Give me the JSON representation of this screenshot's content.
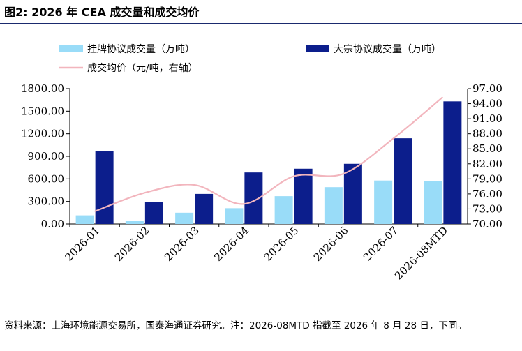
{
  "title": "图2:  2026 年 CEA 成交量和成交均价",
  "source": "资料来源：上海环境能源交易所，国泰海通证券研究。注：2026-08MTD 指截至 2026 年 8 月 28 日，下同。",
  "colors": {
    "listed": "#99dcf8",
    "block": "#0c1e8c",
    "price": "#f2b5bd",
    "rule": "#1a2a6e"
  },
  "chart_data": {
    "type": "bar",
    "categories": [
      "2026-01",
      "2026-02",
      "2026-03",
      "2026-04",
      "2026-05",
      "2026-06",
      "2026-07",
      "2026-08MTD"
    ],
    "series": [
      {
        "name": "挂牌协议成交量（万吨）",
        "axis": "left",
        "type": "bar",
        "values": [
          115,
          40,
          150,
          210,
          370,
          490,
          578,
          573
        ]
      },
      {
        "name": "大宗协议成交量（万吨）",
        "axis": "left",
        "type": "bar",
        "values": [
          970,
          295,
          400,
          685,
          735,
          800,
          1140,
          1630
        ]
      },
      {
        "name": "成交均价（元/吨，右轴）",
        "axis": "right",
        "type": "line",
        "values": [
          72.5,
          76.2,
          77.8,
          74.0,
          79.5,
          80.0,
          87.0,
          95.3
        ]
      }
    ],
    "y_left": {
      "ylim": [
        0,
        1800
      ],
      "ticks": [
        "0.00",
        "300.00",
        "600.00",
        "900.00",
        "1200.00",
        "1500.00",
        "1800.00"
      ]
    },
    "y_right": {
      "ylim": [
        70,
        97
      ],
      "ticks": [
        "70.00",
        "73.00",
        "76.00",
        "79.00",
        "82.00",
        "85.00",
        "88.00",
        "91.00",
        "94.00",
        "97.00"
      ]
    },
    "legend_position": "top",
    "grid": false
  }
}
